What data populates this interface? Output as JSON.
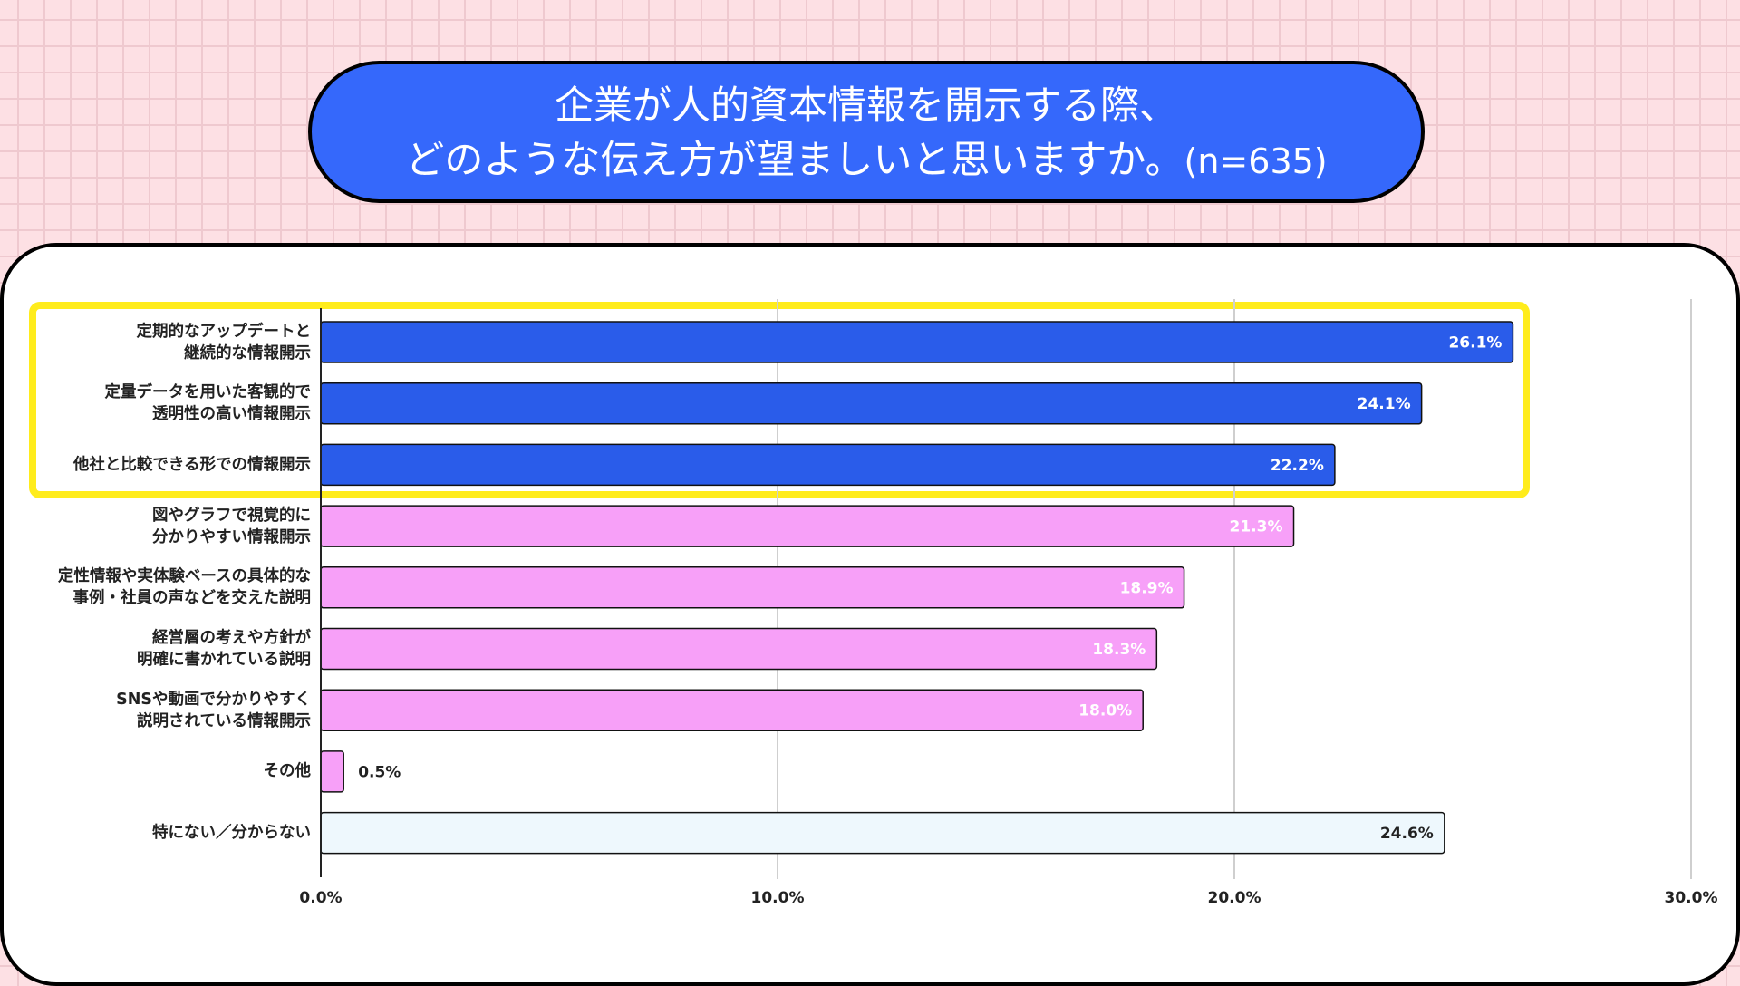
{
  "title": {
    "line1": "企業が人的資本情報を開示する際、",
    "line2": "どのような伝え方が望ましいと思いますか。",
    "n": "(n=635)"
  },
  "colors": {
    "highlight": "#2a5cea",
    "other": "#f7a0f8",
    "none": "#eef8fd",
    "highlight_box": "#ffec1c",
    "title_bg": "#3568fb"
  },
  "chart_data": {
    "type": "bar",
    "orientation": "horizontal",
    "categories": [
      "定期的なアップデートと\n継続的な情報開示",
      "定量データを用いた客観的で\n透明性の高い情報開示",
      "他社と比較できる形での情報開示",
      "図やグラフで視覚的に\n分かりやすい情報開示",
      "定性情報や実体験ベースの具体的な\n事例・社員の声などを交えた説明",
      "経営層の考えや方針が\n明確に書かれている説明",
      "SNSや動画で分かりやすく\n説明されている情報開示",
      "その他",
      "特にない／分からない"
    ],
    "values": [
      26.1,
      24.1,
      22.2,
      21.3,
      18.9,
      18.3,
      18.0,
      0.5,
      24.6
    ],
    "data_labels": [
      "26.1%",
      "24.1%",
      "22.2%",
      "21.3%",
      "18.9%",
      "18.3%",
      "18.0%",
      "0.5%",
      "24.6%"
    ],
    "xlim": [
      0,
      30
    ],
    "x_ticks": [
      "0.0%",
      "10.0%",
      "20.0%",
      "30.0%"
    ],
    "grid": true,
    "highlighted_categories": 3
  }
}
